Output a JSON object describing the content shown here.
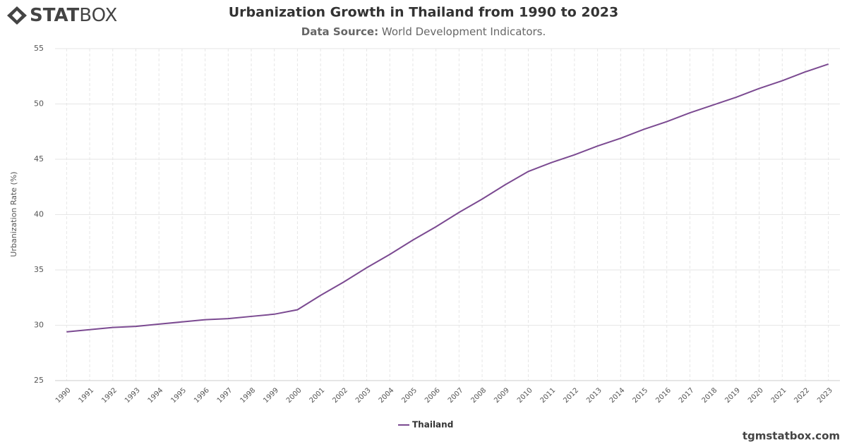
{
  "logo": {
    "bold": "STAT",
    "light": "BOX"
  },
  "footer": "tgmstatbox.com",
  "chart_data": {
    "type": "line",
    "title": "Urbanization Growth in Thailand from 1990 to 2023",
    "subtitle_label": "Data Source:",
    "subtitle": "World Development Indicators.",
    "y_label": "Urbanization Rate (%)",
    "categories": [
      "1990",
      "1991",
      "1992",
      "1993",
      "1994",
      "1995",
      "1996",
      "1997",
      "1998",
      "1999",
      "2000",
      "2001",
      "2002",
      "2003",
      "2004",
      "2005",
      "2006",
      "2007",
      "2008",
      "2009",
      "2010",
      "2011",
      "2012",
      "2013",
      "2014",
      "2015",
      "2016",
      "2017",
      "2018",
      "2019",
      "2020",
      "2021",
      "2022",
      "2023"
    ],
    "series": [
      {
        "name": "Thailand",
        "color": "#7b4a91",
        "values": [
          29.4,
          29.6,
          29.8,
          29.9,
          30.1,
          30.3,
          30.5,
          30.6,
          30.8,
          31.0,
          31.4,
          32.7,
          33.9,
          35.2,
          36.4,
          37.7,
          38.9,
          40.2,
          41.4,
          42.7,
          43.9,
          44.7,
          45.4,
          46.2,
          46.9,
          47.7,
          48.4,
          49.2,
          49.9,
          50.6,
          51.4,
          52.1,
          52.9,
          53.6
        ]
      }
    ],
    "ylim": [
      25,
      55
    ],
    "yticks": [
      25,
      30,
      35,
      40,
      45,
      50,
      55
    ],
    "grid": true
  }
}
